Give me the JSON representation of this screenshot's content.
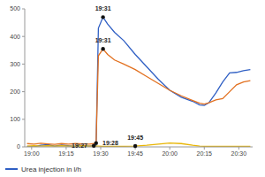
{
  "chart_data": {
    "type": "line",
    "x": [
      1138,
      1141,
      1144,
      1147,
      1150,
      1153,
      1156,
      1159,
      1162,
      1165,
      1167,
      1168,
      1169,
      1171,
      1173,
      1176,
      1180,
      1185,
      1190,
      1195,
      1200,
      1205,
      1210,
      1213,
      1215,
      1217,
      1220,
      1223,
      1226,
      1229,
      1232,
      1235
    ],
    "series": [
      {
        "name": "Urea injection in l/h",
        "color": "#2f5fc4",
        "values": [
          2,
          0,
          6,
          8,
          3,
          7,
          4,
          2,
          5,
          3,
          4,
          6,
          430,
          470,
          445,
          415,
          385,
          335,
          290,
          245,
          205,
          180,
          165,
          152,
          150,
          160,
          195,
          235,
          268,
          270,
          276,
          280
        ]
      },
      {
        "color": "#e2701f",
        "values": [
          12,
          10,
          13,
          11,
          9,
          12,
          10,
          12,
          11,
          10,
          12,
          14,
          330,
          355,
          335,
          315,
          300,
          280,
          255,
          230,
          205,
          185,
          168,
          158,
          155,
          160,
          170,
          175,
          200,
          225,
          235,
          240
        ]
      },
      {
        "color": "#e8b400",
        "values": [
          3,
          4,
          3,
          4,
          3,
          4,
          3,
          3,
          4,
          3,
          3,
          3,
          3,
          2,
          2,
          2,
          2,
          3,
          6,
          10,
          14,
          12,
          6,
          3,
          2,
          2,
          2,
          2,
          2,
          2,
          2,
          2
        ]
      }
    ],
    "xlim": [
      1137,
      1236
    ],
    "xticks": [
      {
        "value": 1140,
        "label": "19:00"
      },
      {
        "value": 1155,
        "label": "19:15"
      },
      {
        "value": 1170,
        "label": "19:30"
      },
      {
        "value": 1185,
        "label": "19:45"
      },
      {
        "value": 1200,
        "label": "20:00"
      },
      {
        "value": 1215,
        "label": "20:15"
      },
      {
        "value": 1230,
        "label": "20:30"
      }
    ],
    "ylim": [
      0,
      500
    ],
    "yticks": [
      0,
      100,
      200,
      300,
      400,
      500
    ],
    "grid": false,
    "legend": "lower left",
    "annotations": [
      {
        "text": "19:31",
        "x": 1171,
        "y": 470
      },
      {
        "text": "19:31",
        "x": 1171,
        "y": 355
      },
      {
        "text": "19:28",
        "x": 1168,
        "y": 14
      },
      {
        "text": "19:27",
        "x": 1167,
        "y": 4
      },
      {
        "text": "19:45",
        "x": 1185,
        "y": 3
      }
    ]
  }
}
